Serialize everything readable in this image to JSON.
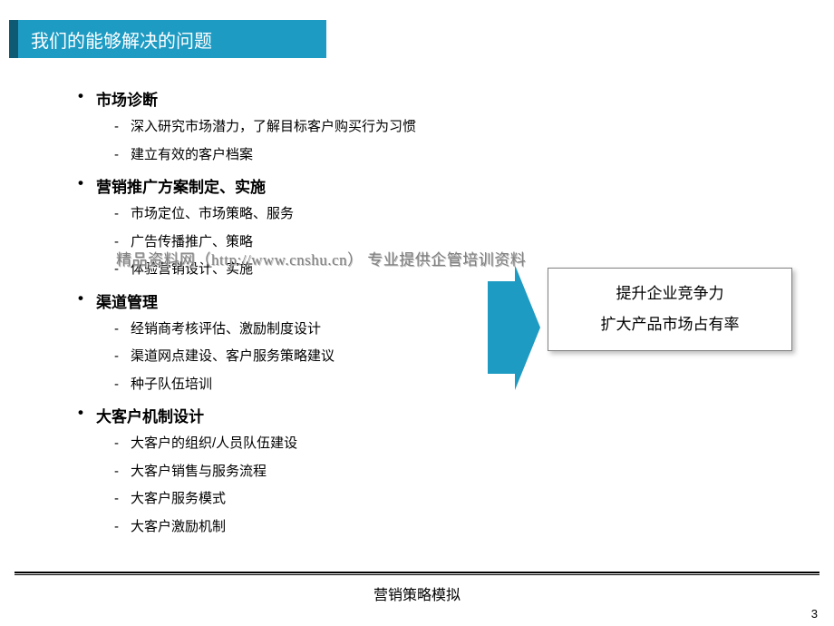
{
  "title": "我们的能够解决的问题",
  "sections": [
    {
      "title": "市场诊断",
      "items": [
        "深入研究市场潜力，了解目标客户购买行为习惯",
        "建立有效的客户档案"
      ]
    },
    {
      "title": "营销推广方案制定、实施",
      "items": [
        "市场定位、市场策略、服务",
        "广告传播推广、策略",
        "体验营销设计、实施"
      ]
    },
    {
      "title": "渠道管理",
      "items": [
        "经销商考核评估、激励制度设计",
        "渠道网点建设、客户服务策略建议",
        "种子队伍培训"
      ]
    },
    {
      "title": "大客户机制设计",
      "items": [
        "大客户的组织/人员队伍建设",
        "大客户销售与服务流程",
        "大客户服务模式",
        "大客户激励机制"
      ]
    }
  ],
  "watermark": "精品资料网（http://www.cnshu.cn） 专业提供企管培训资料",
  "result": {
    "line1": "提升企业竞争力",
    "line2": "扩大产品市场占有率"
  },
  "footer": "营销策略模拟",
  "page_number": "3",
  "colors": {
    "title_bar": "#1e9bc3",
    "title_accent": "#0e5a75",
    "arrow": "#1e9bc3",
    "text": "#000000",
    "watermark": "#808080"
  }
}
